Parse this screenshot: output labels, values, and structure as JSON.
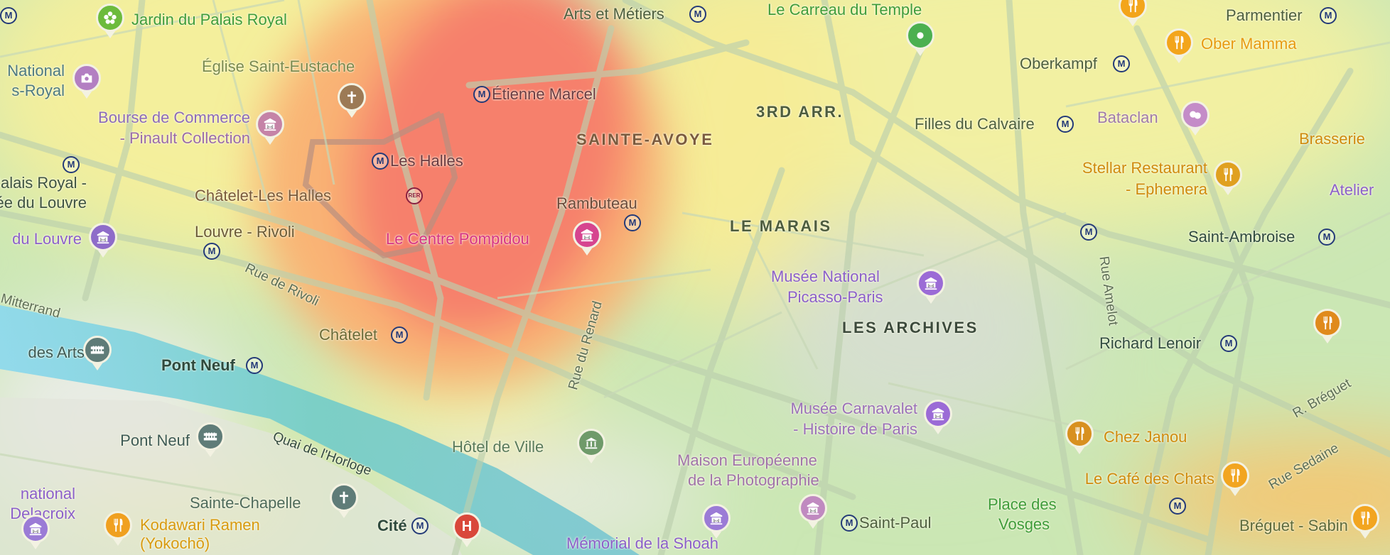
{
  "districts": {
    "third_arr": "3RD ARR.",
    "sainte_avoye": "SAINTE-AVOYE",
    "le_marais": "LE MARAIS",
    "les_archives": "LES ARCHIVES"
  },
  "stations": {
    "arts_metiers": "Arts et Métiers",
    "etienne_marcel": "Étienne Marcel",
    "les_halles": "Les Halles",
    "chatelet_les_halles": "Châtelet-Les Halles",
    "rambuteau": "Rambuteau",
    "louvre_rivoli": "Louvre - Rivoli",
    "palais_royal_1": "Palais Royal -",
    "palais_royal_2": "Musée du Louvre",
    "chatelet": "Châtelet",
    "pont_neuf": "Pont Neuf",
    "cite": "Cité",
    "saint_paul": "Saint-Paul",
    "parmentier": "Parmentier",
    "oberkampf": "Oberkampf",
    "filles_du_calvaire": "Filles du Calvaire",
    "saint_ambroise": "Saint-Ambroise",
    "richard_lenoir": "Richard Lenoir",
    "breguet_sabin": "Bréguet - Sabin",
    "metro_symbol": "M",
    "rer_symbol": "RER"
  },
  "places": {
    "jardin_palais_royal": "Jardin du Palais Royal",
    "national_1": "National",
    "national_2": "s-Royal",
    "saint_eustache": "Église Saint-Eustache",
    "bourse_1": "Bourse de Commerce",
    "bourse_2": "- Pinault Collection",
    "musee_louvre": "du Louvre",
    "pompidou": "Le Centre Pompidou",
    "carreau_temple": "Le Carreau du Temple",
    "picasso_1": "Musée National",
    "picasso_2": "Picasso-Paris",
    "carnavalet_1": "Musée Carnavalet",
    "carnavalet_2": "- Histoire de Paris",
    "mep_1": "Maison Européenne",
    "mep_2": "de la Photographie",
    "delacroix_1": "national",
    "delacroix_2": "Delacroix",
    "pont_des_arts": "des Arts",
    "pont_neuf_bridge": "Pont Neuf",
    "hotel_de_ville": "Hôtel de Ville",
    "sainte_chapelle": "Sainte-Chapelle",
    "place_des_vosges_1": "Place des",
    "place_des_vosges_2": "Vosges",
    "bataclan": "Bataclan",
    "memorial": "Mémorial de la Shoah"
  },
  "restaurants": {
    "ober_mamma": "Ober Mamma",
    "brasserie": "Brasserie",
    "stellar_1": "Stellar Restaurant",
    "stellar_2": "- Ephemera",
    "atelier": "Atelier",
    "chez_janou": "Chez Janou",
    "cafe_chats": "Le Café des Chats",
    "kodawari_1": "Kodawari Ramen",
    "kodawari_2": "(Yokochō)"
  },
  "streets": {
    "rivoli": "Rue de Rivoli",
    "mitterrand": "Mitterrand",
    "renard": "Rue du Renard",
    "amelot": "Rue Amelot",
    "breguet": "R. Bréguet",
    "sedaine": "Rue Sedaine",
    "horloge": "Quai de l'Horloge"
  },
  "pin_symbols": {
    "hospital": "H"
  },
  "colors": {
    "heat_low": "#c9e6b0",
    "heat_mid": "#f5ee98",
    "heat_high": "#f8a86a",
    "heat_peak": "#f6786a",
    "river": "#7cd0d8",
    "metro": "#243a78",
    "museum": "#8b5fc9",
    "restaurant": "#f0a020",
    "park": "#3f9c3a"
  }
}
